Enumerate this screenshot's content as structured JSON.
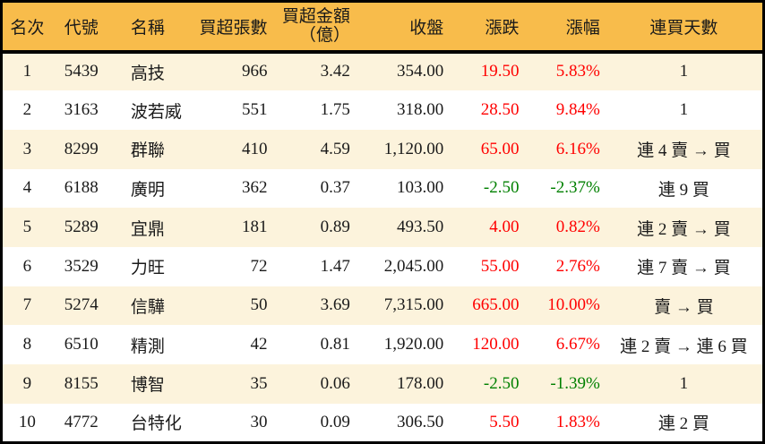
{
  "chart_data": {
    "type": "table",
    "columns": [
      {
        "key": "rank",
        "label": "名次"
      },
      {
        "key": "code",
        "label": "代號"
      },
      {
        "key": "name",
        "label": "名稱"
      },
      {
        "key": "shares",
        "label": "買超張數"
      },
      {
        "key": "amount",
        "label": "買超金額\n（億）"
      },
      {
        "key": "close",
        "label": "收盤"
      },
      {
        "key": "change",
        "label": "漲跌"
      },
      {
        "key": "change_pct",
        "label": "漲幅"
      },
      {
        "key": "streak",
        "label": "連買天數"
      }
    ],
    "rows": [
      {
        "rank": "1",
        "code": "5439",
        "name": "高技",
        "shares": "966",
        "amount": "3.42",
        "close": "354.00",
        "change": "19.50",
        "change_pct": "5.83%",
        "streak": "1",
        "direction": "up"
      },
      {
        "rank": "2",
        "code": "3163",
        "name": "波若威",
        "shares": "551",
        "amount": "1.75",
        "close": "318.00",
        "change": "28.50",
        "change_pct": "9.84%",
        "streak": "1",
        "direction": "up"
      },
      {
        "rank": "3",
        "code": "8299",
        "name": "群聯",
        "shares": "410",
        "amount": "4.59",
        "close": "1,120.00",
        "change": "65.00",
        "change_pct": "6.16%",
        "streak": "連 4 賣 → 買",
        "direction": "up"
      },
      {
        "rank": "4",
        "code": "6188",
        "name": "廣明",
        "shares": "362",
        "amount": "0.37",
        "close": "103.00",
        "change": "-2.50",
        "change_pct": "-2.37%",
        "streak": "連 9 買",
        "direction": "down"
      },
      {
        "rank": "5",
        "code": "5289",
        "name": "宜鼎",
        "shares": "181",
        "amount": "0.89",
        "close": "493.50",
        "change": "4.00",
        "change_pct": "0.82%",
        "streak": "連 2 賣 → 買",
        "direction": "up"
      },
      {
        "rank": "6",
        "code": "3529",
        "name": "力旺",
        "shares": "72",
        "amount": "1.47",
        "close": "2,045.00",
        "change": "55.00",
        "change_pct": "2.76%",
        "streak": "連 7 賣 → 買",
        "direction": "up"
      },
      {
        "rank": "7",
        "code": "5274",
        "name": "信驊",
        "shares": "50",
        "amount": "3.69",
        "close": "7,315.00",
        "change": "665.00",
        "change_pct": "10.00%",
        "streak": "賣 → 買",
        "direction": "up"
      },
      {
        "rank": "8",
        "code": "6510",
        "name": "精測",
        "shares": "42",
        "amount": "0.81",
        "close": "1,920.00",
        "change": "120.00",
        "change_pct": "6.67%",
        "streak": "連 2 賣 → 連 6 買",
        "direction": "up"
      },
      {
        "rank": "9",
        "code": "8155",
        "name": "博智",
        "shares": "35",
        "amount": "0.06",
        "close": "178.00",
        "change": "-2.50",
        "change_pct": "-1.39%",
        "streak": "1",
        "direction": "down"
      },
      {
        "rank": "10",
        "code": "4772",
        "name": "台特化",
        "shares": "30",
        "amount": "0.09",
        "close": "306.50",
        "change": "5.50",
        "change_pct": "1.83%",
        "streak": "連 2 買",
        "direction": "up"
      }
    ]
  },
  "colors": {
    "header_bg": "#F8BC4B",
    "row_alt_bg": "#FCF3DC",
    "row_bg": "#FFFFFF",
    "up": "#FF0000",
    "down": "#008000",
    "border": "#000000",
    "text": "#1A1A1A"
  }
}
